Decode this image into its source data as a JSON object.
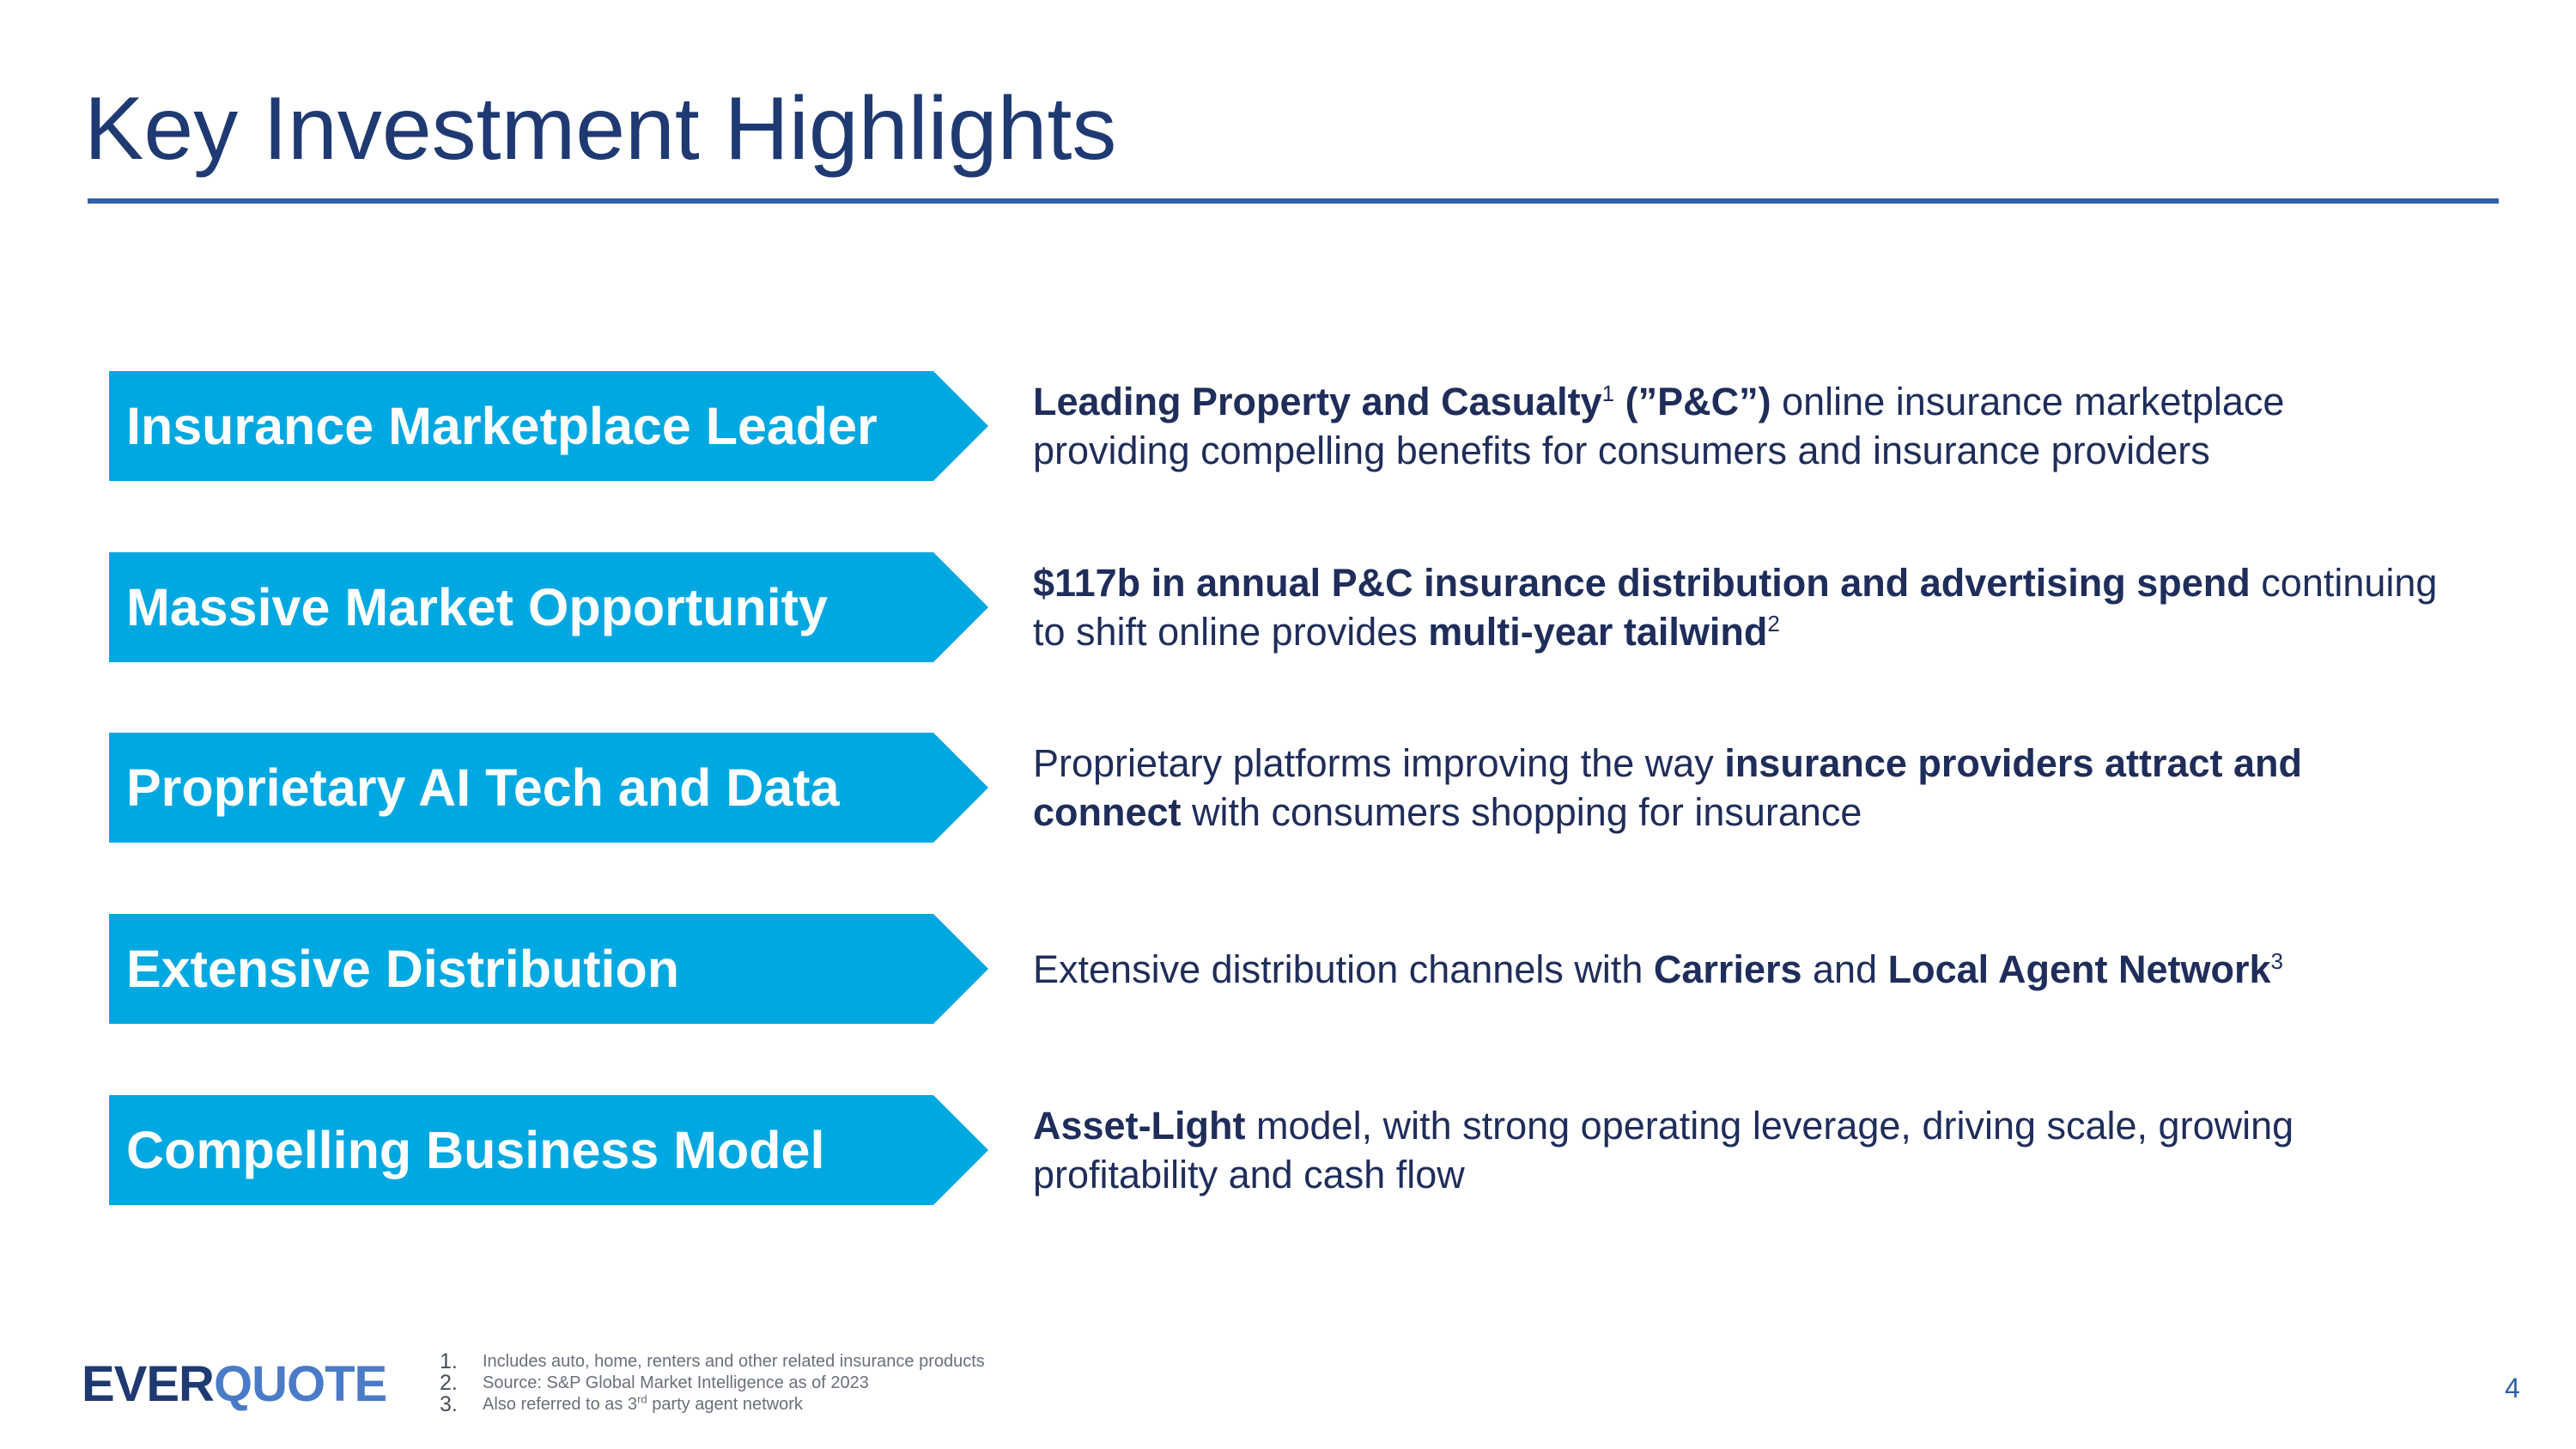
{
  "title": "Key Investment Highlights",
  "colors": {
    "title": "#1f3a72",
    "rule": "#2f5fa8",
    "chevron": "#00a8e1",
    "text": "#1f2d5a",
    "logo_dark": "#1f3a72",
    "logo_light": "#4a7bc8"
  },
  "highlights": [
    {
      "label": "Insurance Marketplace Leader",
      "line1": {
        "b1": "Leading Property and Casualty",
        "sup1": "1",
        "b2": " (”P&C”)",
        "t1": " online insurance marketplace"
      },
      "line2": "providing compelling benefits for consumers and insurance providers"
    },
    {
      "label": "Massive Market Opportunity",
      "line1": {
        "b1": "$117b in annual P&C insurance distribution and advertising spend",
        "t1": " continuing"
      },
      "line2": {
        "t1": "to shift online provides ",
        "b1": "multi-year tailwind",
        "sup1": "2"
      }
    },
    {
      "label": "Proprietary AI Tech and Data",
      "line1": {
        "t1": "Proprietary platforms improving the way ",
        "b1": "insurance providers attract and"
      },
      "line2": {
        "b1": "connect",
        "t1": " with consumers shopping for insurance"
      }
    },
    {
      "label": "Extensive Distribution",
      "line1": {
        "t1": "Extensive distribution channels with ",
        "b1": "Carriers",
        "t2": " and ",
        "b2": "Local Agent Network",
        "sup1": "3"
      }
    },
    {
      "label": "Compelling Business Model",
      "line1": {
        "b1": "Asset-Light",
        "t1": " model, with strong operating leverage, driving scale, growing"
      },
      "line2": "profitability and cash flow"
    }
  ],
  "logo": {
    "part1": "EVER",
    "part2": "QUOTE"
  },
  "footnotes": [
    {
      "num": "1.",
      "text": "Includes auto, home, renters and other related insurance products"
    },
    {
      "num": "2.",
      "text": "Source: S&P Global Market Intelligence as of 2023"
    },
    {
      "num": "3.",
      "text_a": "Also referred to as 3",
      "sup": "rd",
      "text_b": " party agent network"
    }
  ],
  "page_number": "4"
}
